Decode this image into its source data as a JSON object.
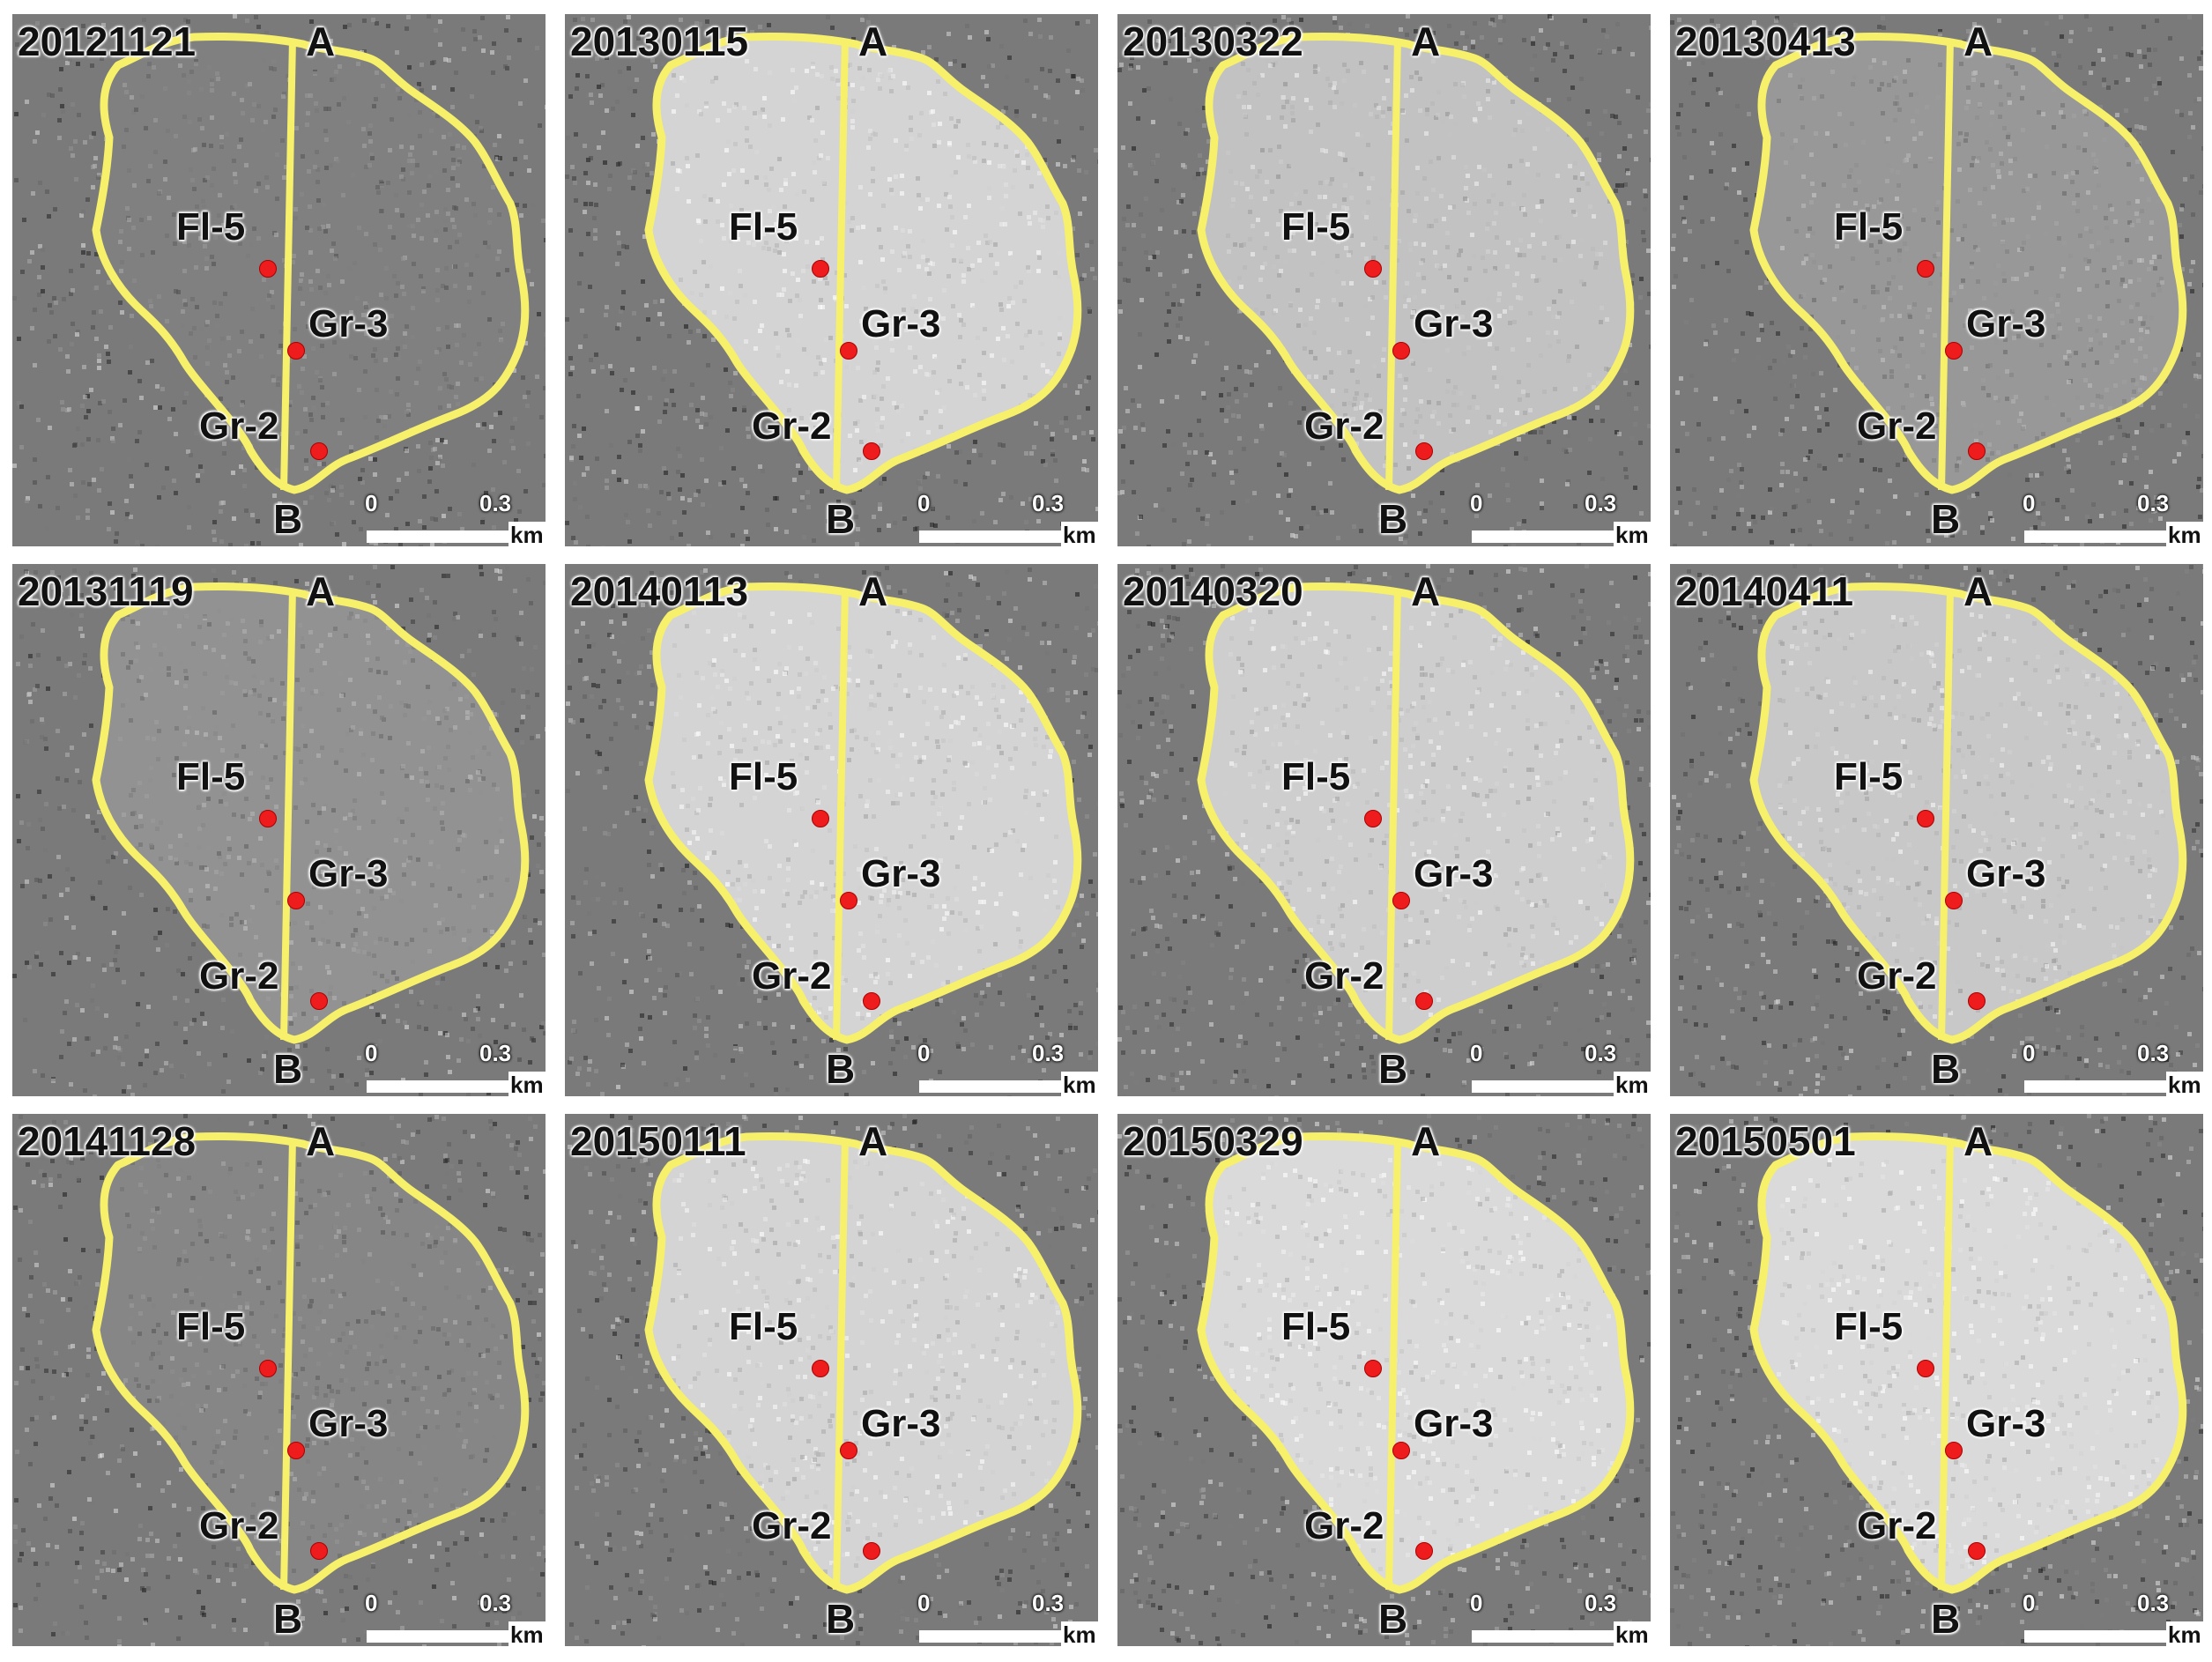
{
  "panels": [
    {
      "date": "20121121",
      "a": "A",
      "b": "B",
      "fl": "Fl-5",
      "gr3": "Gr-3",
      "gr2": "Gr-2",
      "s0": "0",
      "s1": "0.3",
      "unit": "km",
      "brightness": 0.15
    },
    {
      "date": "20130115",
      "a": "A",
      "b": "B",
      "fl": "Fl-5",
      "gr3": "Gr-3",
      "gr2": "Gr-2",
      "s0": "0",
      "s1": "0.3",
      "unit": "km",
      "brightness": 0.85
    },
    {
      "date": "20130322",
      "a": "A",
      "b": "B",
      "fl": "Fl-5",
      "gr3": "Gr-3",
      "gr2": "Gr-2",
      "s0": "0",
      "s1": "0.3",
      "unit": "km",
      "brightness": 0.7
    },
    {
      "date": "20130413",
      "a": "A",
      "b": "B",
      "fl": "Fl-5",
      "gr3": "Gr-3",
      "gr2": "Gr-2",
      "s0": "0",
      "s1": "0.3",
      "unit": "km",
      "brightness": 0.35
    },
    {
      "date": "20131119",
      "a": "A",
      "b": "B",
      "fl": "Fl-5",
      "gr3": "Gr-3",
      "gr2": "Gr-2",
      "s0": "0",
      "s1": "0.3",
      "unit": "km",
      "brightness": 0.3
    },
    {
      "date": "20140113",
      "a": "A",
      "b": "B",
      "fl": "Fl-5",
      "gr3": "Gr-3",
      "gr2": "Gr-2",
      "s0": "0",
      "s1": "0.3",
      "unit": "km",
      "brightness": 0.85
    },
    {
      "date": "20140320",
      "a": "A",
      "b": "B",
      "fl": "Fl-5",
      "gr3": "Gr-3",
      "gr2": "Gr-2",
      "s0": "0",
      "s1": "0.3",
      "unit": "km",
      "brightness": 0.8
    },
    {
      "date": "20140411",
      "a": "A",
      "b": "B",
      "fl": "Fl-5",
      "gr3": "Gr-3",
      "gr2": "Gr-2",
      "s0": "0",
      "s1": "0.3",
      "unit": "km",
      "brightness": 0.75
    },
    {
      "date": "20141128",
      "a": "A",
      "b": "B",
      "fl": "Fl-5",
      "gr3": "Gr-3",
      "gr2": "Gr-2",
      "s0": "0",
      "s1": "0.3",
      "unit": "km",
      "brightness": 0.2
    },
    {
      "date": "20150111",
      "a": "A",
      "b": "B",
      "fl": "Fl-5",
      "gr3": "Gr-3",
      "gr2": "Gr-2",
      "s0": "0",
      "s1": "0.3",
      "unit": "km",
      "brightness": 0.85
    },
    {
      "date": "20150329",
      "a": "A",
      "b": "B",
      "fl": "Fl-5",
      "gr3": "Gr-3",
      "gr2": "Gr-2",
      "s0": "0",
      "s1": "0.3",
      "unit": "km",
      "brightness": 0.9
    },
    {
      "date": "20150501",
      "a": "A",
      "b": "B",
      "fl": "Fl-5",
      "gr3": "Gr-3",
      "gr2": "Gr-2",
      "s0": "0",
      "s1": "0.3",
      "unit": "km",
      "brightness": 0.9
    }
  ],
  "colors": {
    "outline": "#f7f06a",
    "point": "#ee1c1c",
    "background": "#7a7a7a"
  }
}
